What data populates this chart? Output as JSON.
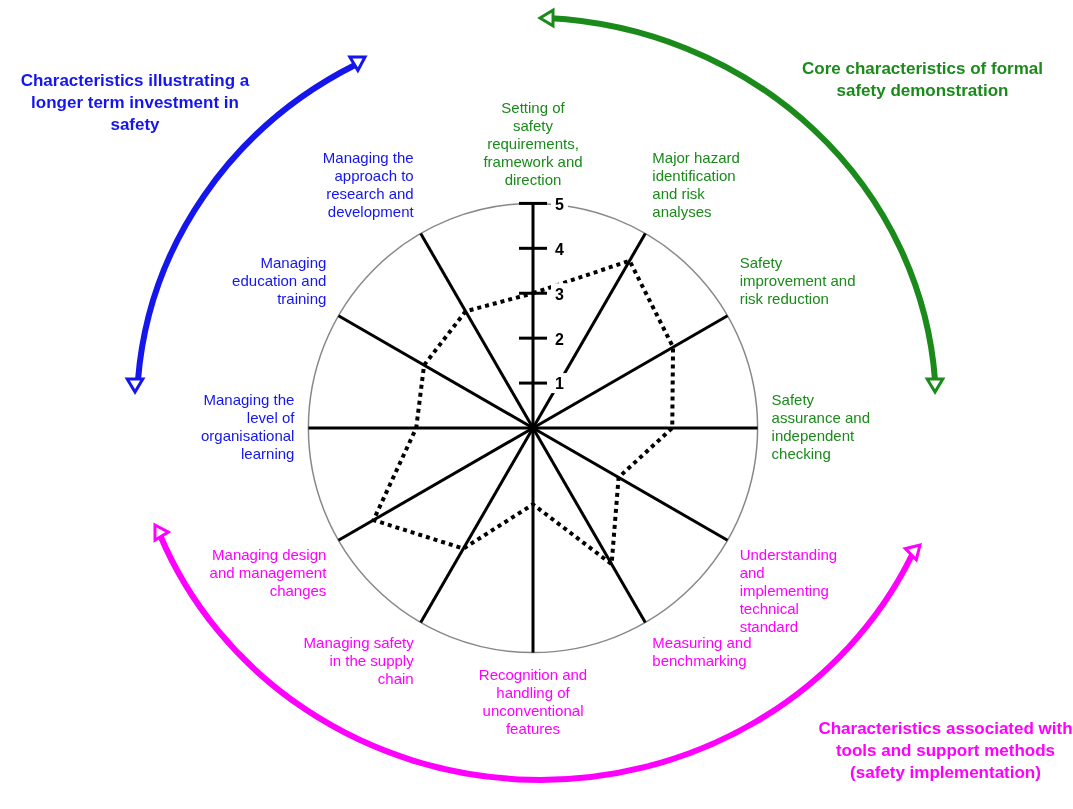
{
  "chart_data": {
    "type": "radar",
    "categories": [
      "Setting of safety requirements, framework and direction",
      "Major hazard identification and risk analyses",
      "Safety improvement and risk reduction",
      "Safety assurance and independent checking",
      "Understanding and implementing technical standard",
      "Measuring and benchmarking",
      "Recognition and handling of unconventional features",
      "Managing safety in the supply chain",
      "Managing design and management changes",
      "Managing the level of organisational learning",
      "Managing education and training",
      "Managing the approach to research and development"
    ],
    "series": [
      {
        "color": "#000000",
        "values": [
          3,
          4.3,
          3.6,
          3.1,
          2.2,
          3.5,
          1.7,
          3.1,
          4.1,
          2.6,
          2.8,
          3
        ]
      }
    ],
    "ylim": [
      0,
      5
    ],
    "yticks": [
      1,
      2,
      3,
      4,
      5
    ],
    "line_style": "dotted",
    "marker": "none",
    "legend": false,
    "annotations": [
      "Core characteristics of formal safety demonstration",
      "Characteristics associated with tools and support methods (safety implementation)",
      "Characteristics illustrating a longer term investment in safety"
    ]
  }
}
